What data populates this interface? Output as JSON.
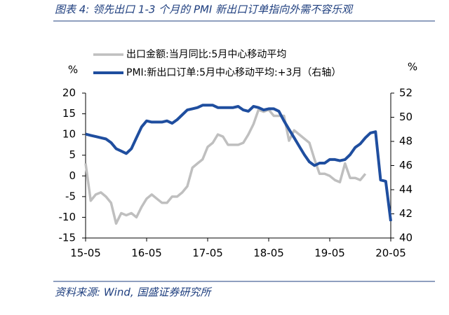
{
  "header": {
    "title": "图表 4: 领先出口 1-3 个月的 PMI 新出口订单指向外需不容乐观"
  },
  "footer": {
    "source": "资料来源: Wind, 国盛证券研究所"
  },
  "chart_data": {
    "type": "line",
    "y_unit": "%",
    "y2_unit": "%",
    "categories": [
      "15-05",
      null,
      null,
      null,
      null,
      null,
      null,
      null,
      null,
      null,
      null,
      null,
      "16-05",
      null,
      null,
      null,
      null,
      null,
      null,
      null,
      null,
      null,
      null,
      null,
      "17-05",
      null,
      null,
      null,
      null,
      null,
      null,
      null,
      null,
      null,
      null,
      null,
      "18-05",
      null,
      null,
      null,
      null,
      null,
      null,
      null,
      null,
      null,
      null,
      null,
      "19-05",
      null,
      null,
      null,
      null,
      null,
      null,
      null,
      null,
      null,
      null,
      null,
      "20-05"
    ],
    "series": [
      {
        "name": "出口金额:当月同比:5月中心移动平均",
        "color": "#bfbfbf",
        "axis": "y",
        "values": [
          3,
          -6,
          -4.5,
          -4,
          -5,
          -6.5,
          -11.5,
          -9,
          -9.5,
          -9,
          -10,
          -7.5,
          -5.5,
          -4.5,
          -5.5,
          -6.5,
          -6.5,
          -5,
          -5,
          -4,
          -2.5,
          2,
          3,
          4,
          7,
          8,
          10,
          9.5,
          7.5,
          7.5,
          7.5,
          8,
          10,
          12.5,
          16,
          15.5,
          16,
          14.5,
          14.5,
          14.5,
          8.5,
          11,
          10,
          9,
          8,
          4,
          0.5,
          0.5,
          0,
          -1,
          -1.5,
          3,
          -0.5,
          -0.5,
          -1,
          0.5,
          null,
          null,
          null,
          null,
          null
        ]
      },
      {
        "name": "PMI:新出口订单:5月中心移动平均:+3月（右轴）",
        "color": "#1f4e9f",
        "axis": "y2",
        "values": [
          48.6,
          48.5,
          48.4,
          48.3,
          48.2,
          47.9,
          47.4,
          47.2,
          47.0,
          47.4,
          48.3,
          49.2,
          49.7,
          49.6,
          49.6,
          49.6,
          49.7,
          49.5,
          49.8,
          50.2,
          50.6,
          50.7,
          50.8,
          51.0,
          51.0,
          51.0,
          50.8,
          50.8,
          50.8,
          50.8,
          50.9,
          50.6,
          50.5,
          50.9,
          50.8,
          50.6,
          50.7,
          50.7,
          50.5,
          49.7,
          49.0,
          48.3,
          47.6,
          46.9,
          46.3,
          46.0,
          46.2,
          46.2,
          46.5,
          46.5,
          46.4,
          46.5,
          46.9,
          47.5,
          47.8,
          48.3,
          48.7,
          48.8,
          44.8,
          44.7,
          41.4
        ]
      }
    ],
    "ylim": [
      -15,
      20
    ],
    "yticks": [
      -15,
      -10,
      -5,
      0,
      5,
      10,
      15,
      20
    ],
    "y2lim": [
      40,
      52
    ],
    "y2ticks": [
      40,
      42,
      44,
      46,
      48,
      50,
      52
    ]
  }
}
